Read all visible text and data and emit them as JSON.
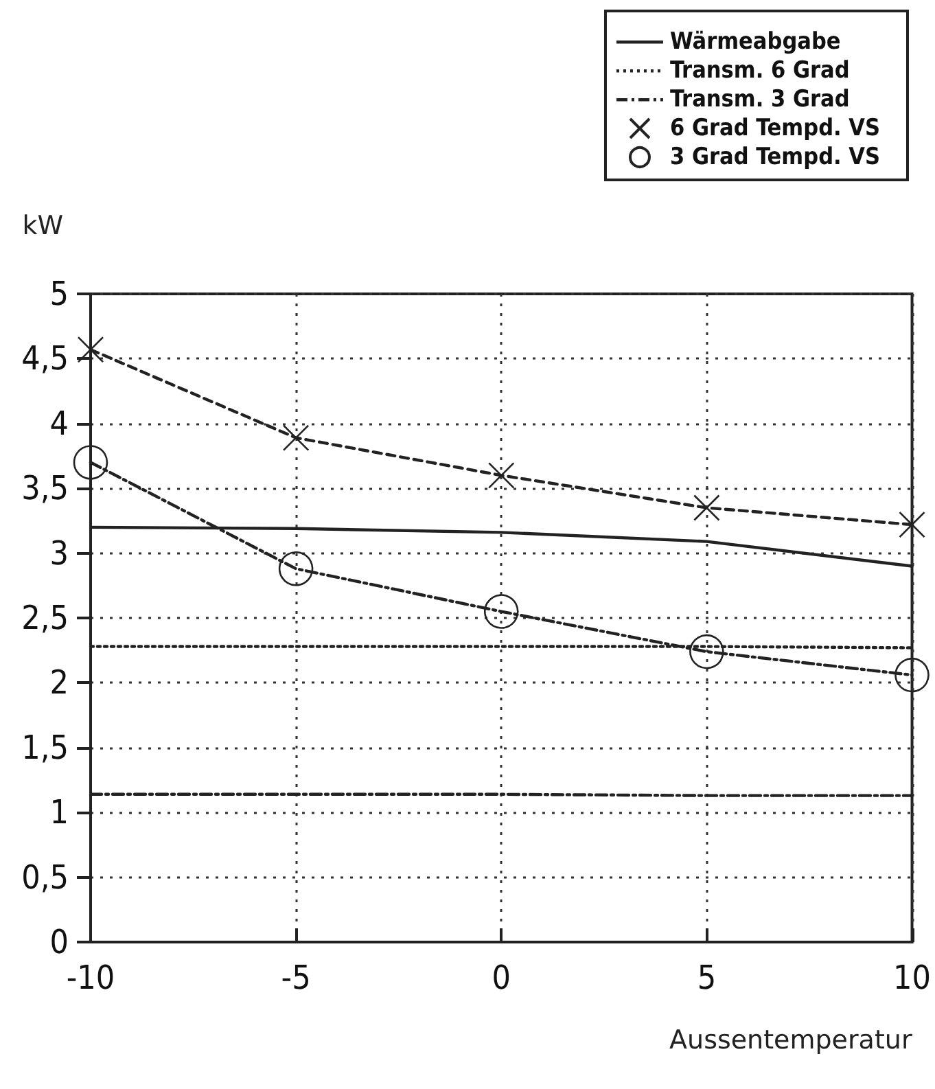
{
  "chart_data": {
    "type": "line",
    "x": [
      -10,
      -5,
      0,
      5,
      10
    ],
    "series": [
      {
        "name": "Wärmeabgabe",
        "color": "#222222",
        "line_style": "solid",
        "marker": "none",
        "values": [
          3.2,
          3.19,
          3.16,
          3.09,
          2.9
        ]
      },
      {
        "name": "Transm. 6 Grad",
        "color": "#222222",
        "line_style": "dotted",
        "marker": "none",
        "values": [
          2.28,
          2.28,
          2.28,
          2.28,
          2.27
        ]
      },
      {
        "name": "Transm. 3 Grad",
        "color": "#222222",
        "line_style": "dashdot",
        "marker": "none",
        "values": [
          1.14,
          1.14,
          1.14,
          1.13,
          1.13
        ]
      },
      {
        "name": "6 Grad Tempd. VS",
        "color": "#222222",
        "line_style": "dashed",
        "marker": "cross",
        "values": [
          4.57,
          3.89,
          3.6,
          3.35,
          3.22
        ]
      },
      {
        "name": "3 Grad Tempd. VS",
        "color": "#222222",
        "line_style": "dashdot",
        "marker": "circle",
        "values": [
          3.7,
          2.88,
          2.55,
          2.24,
          2.06
        ]
      }
    ],
    "xlabel": "Aussentemperatur",
    "ylabel": "kW",
    "xlim": [
      -10,
      10
    ],
    "xticks": [
      -10,
      -5,
      0,
      5,
      10
    ],
    "ylim": [
      0,
      5
    ],
    "yticks": [
      0,
      {
        "value": 0.5,
        "label": "0,5"
      },
      1,
      {
        "value": 1.5,
        "label": "1,5"
      },
      2,
      {
        "value": 2.5,
        "label": "2,5"
      },
      3,
      {
        "value": 3.5,
        "label": "3,5"
      },
      4,
      {
        "value": 4.5,
        "label": "4,5"
      },
      5
    ],
    "grid": true,
    "legend": "top right"
  }
}
